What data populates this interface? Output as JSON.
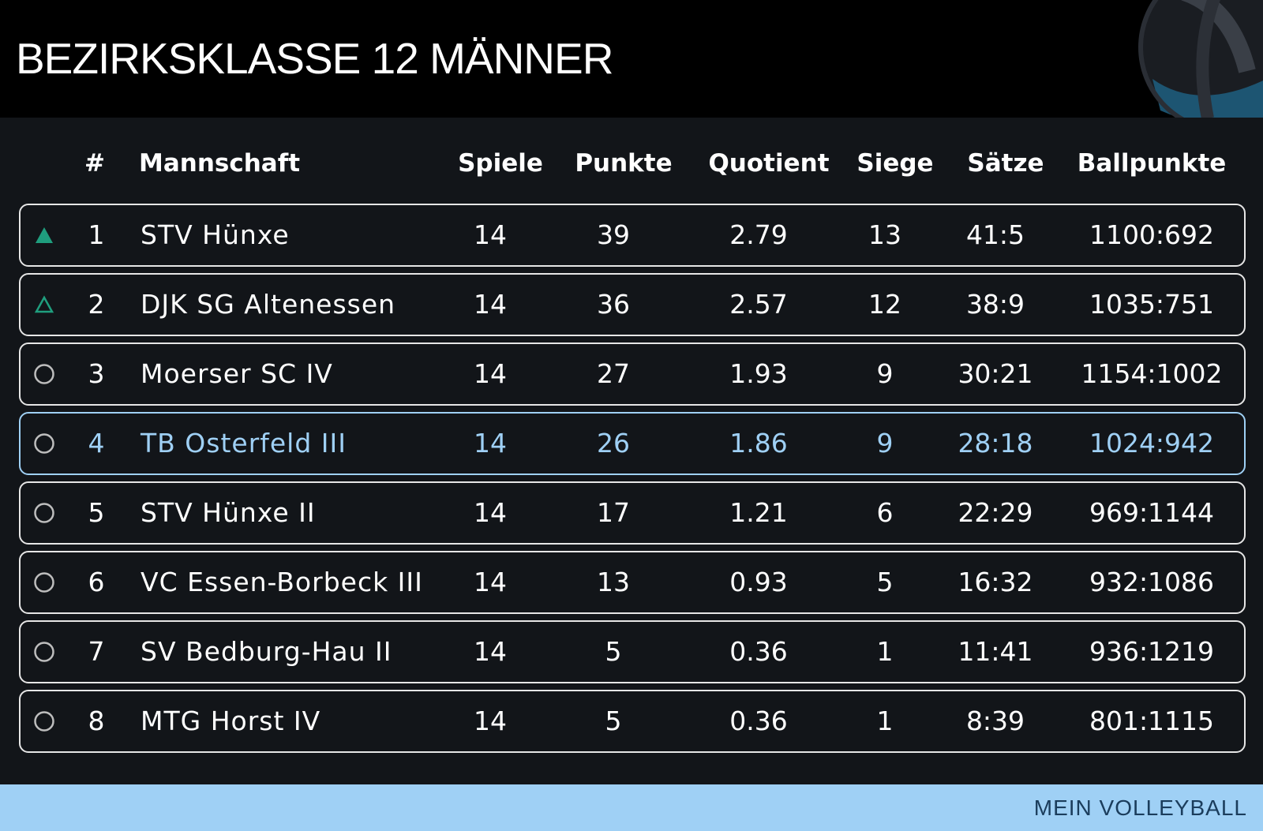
{
  "header": {
    "title": "BEZIRKSKLASSE 12 MÄNNER",
    "logo_icon": "volleyball-icon"
  },
  "table": {
    "columns": {
      "rank": "#",
      "team": "Mannschaft",
      "games": "Spiele",
      "points": "Punkte",
      "quotient": "Quotient",
      "wins": "Siege",
      "sets": "Sätze",
      "ballpoints": "Ballpunkte"
    },
    "rows": [
      {
        "status": "promotion",
        "rank": "1",
        "team": "STV Hünxe",
        "games": "14",
        "points": "39",
        "quotient": "2.79",
        "wins": "13",
        "sets": "41:5",
        "ballpoints": "1100:692"
      },
      {
        "status": "promotion-playoff",
        "rank": "2",
        "team": "DJK SG Altenessen",
        "games": "14",
        "points": "36",
        "quotient": "2.57",
        "wins": "12",
        "sets": "38:9",
        "ballpoints": "1035:751"
      },
      {
        "status": "neutral",
        "rank": "3",
        "team": "Moerser SC IV",
        "games": "14",
        "points": "27",
        "quotient": "1.93",
        "wins": "9",
        "sets": "30:21",
        "ballpoints": "1154:1002"
      },
      {
        "status": "neutral",
        "rank": "4",
        "team": "TB Osterfeld III",
        "games": "14",
        "points": "26",
        "quotient": "1.86",
        "wins": "9",
        "sets": "28:18",
        "ballpoints": "1024:942",
        "highlight": true
      },
      {
        "status": "neutral",
        "rank": "5",
        "team": "STV Hünxe II",
        "games": "14",
        "points": "17",
        "quotient": "1.21",
        "wins": "6",
        "sets": "22:29",
        "ballpoints": "969:1144"
      },
      {
        "status": "neutral",
        "rank": "6",
        "team": "VC Essen-Borbeck III",
        "games": "14",
        "points": "13",
        "quotient": "0.93",
        "wins": "5",
        "sets": "16:32",
        "ballpoints": "932:1086"
      },
      {
        "status": "neutral",
        "rank": "7",
        "team": "SV Bedburg-Hau II",
        "games": "14",
        "points": "5",
        "quotient": "0.36",
        "wins": "1",
        "sets": "11:41",
        "ballpoints": "936:1219"
      },
      {
        "status": "neutral",
        "rank": "8",
        "team": "MTG Horst IV",
        "games": "14",
        "points": "5",
        "quotient": "0.36",
        "wins": "1",
        "sets": "8:39",
        "ballpoints": "801:1115"
      }
    ]
  },
  "footer": {
    "brand": "MEIN VOLLEYBALL"
  },
  "colors": {
    "background": "#121519",
    "header_bg": "#000000",
    "accent": "#9fd0f5",
    "promotion": "#1f9e7e",
    "neutral_icon": "#bdbdbd",
    "row_border": "#e6e6e6",
    "footer_text": "#1b3d5c"
  }
}
